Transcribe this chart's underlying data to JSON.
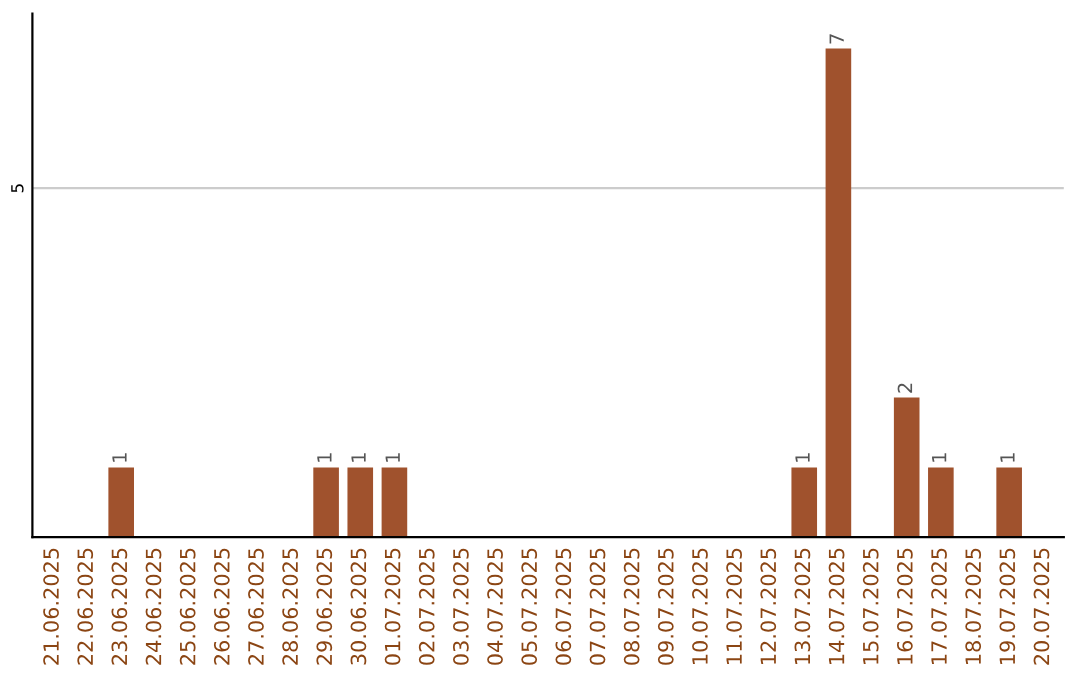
{
  "chart_data": {
    "type": "bar",
    "categories": [
      "21.06.2025",
      "22.06.2025",
      "23.06.2025",
      "24.06.2025",
      "25.06.2025",
      "26.06.2025",
      "27.06.2025",
      "28.06.2025",
      "29.06.2025",
      "30.06.2025",
      "01.07.2025",
      "02.07.2025",
      "03.07.2025",
      "04.07.2025",
      "05.07.2025",
      "06.07.2025",
      "07.07.2025",
      "08.07.2025",
      "09.07.2025",
      "10.07.2025",
      "11.07.2025",
      "12.07.2025",
      "13.07.2025",
      "14.07.2025",
      "15.07.2025",
      "16.07.2025",
      "17.07.2025",
      "18.07.2025",
      "19.07.2025",
      "20.07.2025"
    ],
    "values": [
      null,
      null,
      1,
      null,
      null,
      null,
      null,
      null,
      1,
      1,
      1,
      null,
      null,
      null,
      null,
      null,
      null,
      null,
      null,
      null,
      null,
      null,
      1,
      7,
      null,
      2,
      1,
      null,
      1,
      null
    ],
    "color": "#a0522d",
    "ylim": [
      0,
      7.5
    ],
    "yticks": [
      5
    ],
    "grid": "y",
    "data_labels": true
  }
}
